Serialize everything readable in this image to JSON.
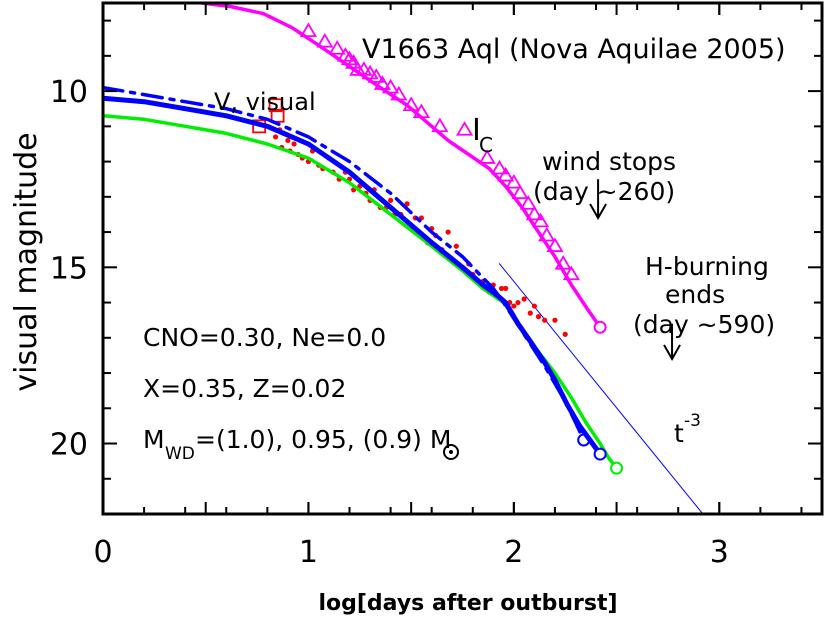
{
  "chart_data": {
    "type": "scatter",
    "title": "V1663 Aql (Nova Aquilae 2005)",
    "xlabel": "log[days after outburst]",
    "ylabel": "visual magnitude",
    "xlim": [
      0,
      3.5
    ],
    "ylim": [
      22,
      7.5
    ],
    "y_inverted": true,
    "x_ticks": [
      0,
      1,
      2,
      3
    ],
    "y_ticks": [
      10,
      15,
      20
    ],
    "series": [
      {
        "name": "I_C",
        "kind": "markers",
        "marker": "triangle",
        "color": "#ff00ff",
        "x": [
          1.0,
          1.08,
          1.14,
          1.18,
          1.2,
          1.22,
          1.24,
          1.27,
          1.3,
          1.33,
          1.36,
          1.4,
          1.44,
          1.5,
          1.55,
          1.64,
          1.76,
          1.87,
          1.93,
          1.96,
          2.0,
          2.03,
          2.07,
          2.1,
          2.13,
          2.16,
          2.2,
          2.24,
          2.28
        ],
        "y": [
          8.3,
          8.6,
          8.8,
          9.0,
          9.1,
          9.2,
          9.4,
          9.4,
          9.5,
          9.6,
          9.8,
          9.9,
          10.1,
          10.4,
          10.6,
          11.0,
          11.1,
          11.9,
          12.2,
          12.4,
          12.6,
          12.9,
          13.2,
          13.5,
          13.7,
          14.1,
          14.4,
          14.9,
          15.2
        ]
      },
      {
        "name": "I_C model",
        "kind": "line",
        "color": "#ff00ff",
        "x": [
          0.48,
          0.62,
          0.78,
          0.92,
          1.05,
          1.2,
          1.35,
          1.48,
          1.58,
          1.68,
          1.78,
          1.88,
          1.96,
          2.04,
          2.12,
          2.2,
          2.28,
          2.36,
          2.42
        ],
        "y": [
          7.5,
          7.6,
          7.8,
          8.2,
          8.7,
          9.3,
          9.9,
          10.4,
          10.9,
          11.4,
          11.8,
          12.2,
          12.7,
          13.3,
          14.0,
          14.7,
          15.5,
          16.2,
          16.7
        ],
        "end_marker": [
          2.42,
          16.7
        ]
      },
      {
        "name": "V, visual",
        "kind": "dots",
        "color": "#ff0000",
        "x": [
          0.84,
          0.86,
          0.87,
          0.88,
          0.9,
          0.91,
          0.93,
          0.95,
          0.97,
          1.0,
          1.02,
          1.05,
          1.07,
          1.1,
          1.12,
          1.15,
          1.18,
          1.2,
          1.22,
          1.25,
          1.28,
          1.3,
          1.32,
          1.35,
          1.38,
          1.4,
          1.42,
          1.45,
          1.48,
          1.5,
          1.52,
          1.55,
          1.58,
          1.6,
          1.62,
          1.65,
          1.68,
          1.7,
          1.72,
          1.75,
          1.78,
          1.8,
          1.82,
          1.85,
          1.88,
          1.9,
          1.92,
          1.94,
          1.96,
          1.98,
          2.0,
          2.02,
          2.05,
          2.08,
          2.1,
          2.12,
          2.15,
          2.2,
          2.25
        ],
        "y": [
          11.3,
          11.1,
          11.6,
          11.2,
          11.4,
          11.7,
          11.5,
          11.8,
          11.9,
          12.0,
          11.7,
          12.1,
          12.2,
          11.9,
          12.3,
          12.5,
          12.3,
          12.5,
          12.8,
          12.7,
          12.9,
          13.1,
          12.8,
          13.3,
          13.3,
          13.1,
          13.5,
          13.5,
          13.2,
          13.9,
          13.6,
          13.6,
          14.3,
          13.9,
          14.1,
          14.5,
          14.0,
          14.8,
          14.4,
          15.0,
          14.9,
          15.2,
          15.4,
          15.4,
          15.7,
          15.5,
          15.8,
          15.6,
          15.6,
          16.0,
          16.1,
          16.0,
          15.9,
          16.3,
          16.1,
          16.4,
          16.5,
          16.5,
          16.9
        ]
      },
      {
        "name": "V early",
        "kind": "markers",
        "marker": "square",
        "color": "#ff0000",
        "x": [
          0.76,
          0.84,
          0.85
        ],
        "y": [
          11.0,
          10.4,
          10.7
        ]
      },
      {
        "name": "M_WD=1.0",
        "kind": "line",
        "color": "#0000ff",
        "dash": "dashdot",
        "x": [
          0.0,
          0.2,
          0.4,
          0.6,
          0.8,
          1.0,
          1.2,
          1.4,
          1.6,
          1.75,
          1.85,
          1.9,
          1.95,
          2.05,
          2.15,
          2.25,
          2.3,
          2.34
        ],
        "y": [
          9.9,
          10.1,
          10.3,
          10.5,
          10.8,
          11.3,
          12.0,
          12.9,
          14.0,
          14.7,
          15.3,
          15.6,
          16.0,
          16.9,
          17.8,
          18.8,
          19.4,
          19.9
        ],
        "end_marker": [
          2.34,
          19.9
        ]
      },
      {
        "name": "M_WD=0.95",
        "kind": "line",
        "color": "#0000ff",
        "width": 5,
        "x": [
          0.0,
          0.2,
          0.4,
          0.6,
          0.8,
          1.0,
          1.2,
          1.4,
          1.6,
          1.75,
          1.85,
          1.92,
          1.96,
          2.02,
          2.08,
          2.15,
          2.2,
          2.26,
          2.32,
          2.37,
          2.42
        ],
        "y": [
          10.2,
          10.3,
          10.5,
          10.7,
          11.0,
          11.5,
          12.3,
          13.3,
          14.3,
          15.0,
          15.5,
          15.8,
          16.0,
          16.6,
          17.1,
          17.7,
          18.2,
          18.9,
          19.5,
          19.9,
          20.3
        ],
        "end_marker": [
          2.42,
          20.3
        ]
      },
      {
        "name": "M_WD=0.9",
        "kind": "line",
        "color": "#00ee00",
        "x": [
          0.0,
          0.2,
          0.4,
          0.6,
          0.8,
          1.0,
          1.2,
          1.4,
          1.6,
          1.75,
          1.85,
          1.95,
          2.0,
          2.05,
          2.12,
          2.2,
          2.28,
          2.35,
          2.42,
          2.46,
          2.5
        ],
        "y": [
          10.7,
          10.8,
          11.0,
          11.2,
          11.5,
          11.9,
          12.6,
          13.5,
          14.4,
          15.1,
          15.6,
          16.0,
          16.4,
          16.9,
          17.4,
          18.0,
          18.7,
          19.4,
          20.0,
          20.4,
          20.7
        ],
        "end_marker": [
          2.5,
          20.7
        ]
      },
      {
        "name": "t^-3",
        "kind": "line",
        "color": "#0000ff",
        "width": 1,
        "x": [
          1.93,
          2.92
        ],
        "y": [
          14.9,
          22.0
        ]
      }
    ],
    "annotations": [
      {
        "id": "title",
        "text": "V1663 Aql (Nova Aquilae 2005)"
      },
      {
        "id": "v-visual",
        "text": "V, visual"
      },
      {
        "id": "ic-I",
        "text": "I"
      },
      {
        "id": "ic-C",
        "text": "C"
      },
      {
        "id": "wind1",
        "text": "wind stops"
      },
      {
        "id": "wind2",
        "text": "(day ~260)"
      },
      {
        "id": "h1",
        "text": "H-burning"
      },
      {
        "id": "h2",
        "text": "ends"
      },
      {
        "id": "h3",
        "text": "(day ~590)"
      },
      {
        "id": "cno",
        "text": "CNO=0.30, Ne=0.0"
      },
      {
        "id": "xz",
        "text": "X=0.35, Z=0.02"
      },
      {
        "id": "mwd-M",
        "text": "M"
      },
      {
        "id": "mwd-sub",
        "text": "WD"
      },
      {
        "id": "mwd-rest",
        "text": "=(1.0), 0.95, (0.9) M"
      },
      {
        "id": "t3-t",
        "text": "t"
      },
      {
        "id": "t3-exp",
        "text": "-3"
      }
    ],
    "arrows": [
      {
        "name": "wind-stops-arrow",
        "x": 2.41,
        "y_from": 12.5,
        "y_to": 13.6
      },
      {
        "name": "h-burning-ends-arrow",
        "x": 2.77,
        "y_from": 16.6,
        "y_to": 17.6
      }
    ]
  }
}
